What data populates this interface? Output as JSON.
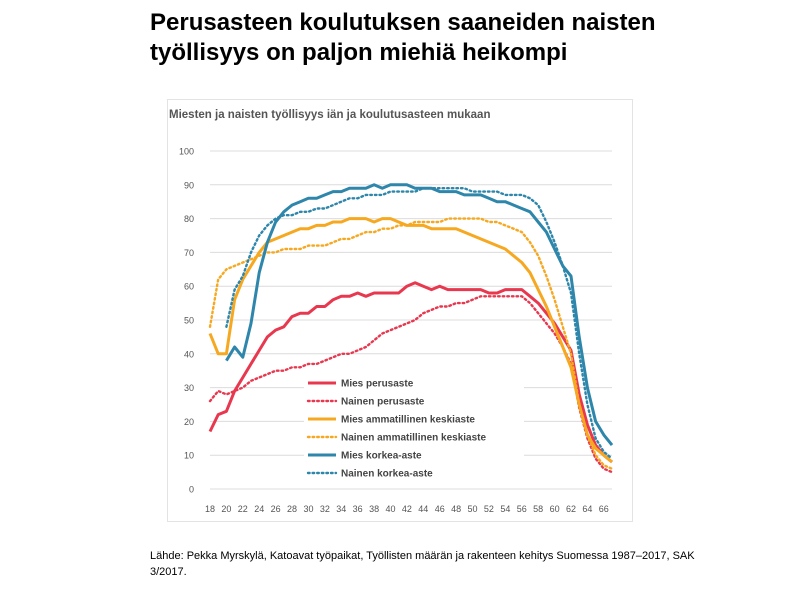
{
  "slide": {
    "title": "Perusasteen koulutuksen saaneiden naisten työllisyys on paljon miehiä heikompi",
    "source": "Lähde: Pekka Myrskylä, Katoavat työpaikat, Työllisten määrän ja rakenteen kehitys Suomessa 1987–2017, SAK 3/2017."
  },
  "chart_data": {
    "type": "line",
    "title": "Miesten ja naisten työllisyys iän ja koulutusasteen mukaan",
    "xlabel": "",
    "ylabel": "",
    "xlim": [
      18,
      67
    ],
    "ylim": [
      0,
      100
    ],
    "yticks": [
      0,
      10,
      20,
      30,
      40,
      50,
      60,
      70,
      80,
      90,
      100
    ],
    "xticks": [
      18,
      20,
      22,
      24,
      26,
      28,
      30,
      32,
      34,
      36,
      38,
      40,
      42,
      44,
      46,
      48,
      50,
      52,
      54,
      56,
      58,
      60,
      62,
      64,
      66
    ],
    "grid": "horizontal",
    "legend_position": "lower-center",
    "series": [
      {
        "name": "Mies perusaste",
        "color": "#e8384f",
        "style": "solid",
        "x": [
          18,
          19,
          20,
          21,
          22,
          23,
          24,
          25,
          26,
          27,
          28,
          29,
          30,
          31,
          32,
          33,
          34,
          35,
          36,
          37,
          38,
          39,
          40,
          41,
          42,
          43,
          44,
          45,
          46,
          47,
          48,
          49,
          50,
          51,
          52,
          53,
          54,
          55,
          56,
          57,
          58,
          59,
          60,
          61,
          62,
          63,
          64,
          65,
          66,
          67
        ],
        "y": [
          17,
          22,
          23,
          29,
          33,
          37,
          41,
          45,
          47,
          48,
          51,
          52,
          52,
          54,
          54,
          56,
          57,
          57,
          58,
          57,
          58,
          58,
          58,
          58,
          60,
          61,
          60,
          59,
          60,
          59,
          59,
          59,
          59,
          59,
          58,
          58,
          59,
          59,
          59,
          57,
          55,
          52,
          49,
          45,
          41,
          28,
          19,
          13,
          10,
          8
        ]
      },
      {
        "name": "Nainen perusaste",
        "color": "#e8384f",
        "style": "dotted",
        "x": [
          18,
          19,
          20,
          21,
          22,
          23,
          24,
          25,
          26,
          27,
          28,
          29,
          30,
          31,
          32,
          33,
          34,
          35,
          36,
          37,
          38,
          39,
          40,
          41,
          42,
          43,
          44,
          45,
          46,
          47,
          48,
          49,
          50,
          51,
          52,
          53,
          54,
          55,
          56,
          57,
          58,
          59,
          60,
          61,
          62,
          63,
          64,
          65,
          66,
          67
        ],
        "y": [
          26,
          29,
          28,
          29,
          30,
          32,
          33,
          34,
          35,
          35,
          36,
          36,
          37,
          37,
          38,
          39,
          40,
          40,
          41,
          42,
          44,
          46,
          47,
          48,
          49,
          50,
          52,
          53,
          54,
          54,
          55,
          55,
          56,
          57,
          57,
          57,
          57,
          57,
          57,
          55,
          52,
          49,
          46,
          42,
          37,
          24,
          15,
          9,
          6,
          5
        ]
      },
      {
        "name": "Mies ammatillinen keskiaste",
        "color": "#f6a821",
        "style": "solid",
        "x": [
          18,
          19,
          20,
          21,
          22,
          23,
          24,
          25,
          26,
          27,
          28,
          29,
          30,
          31,
          32,
          33,
          34,
          35,
          36,
          37,
          38,
          39,
          40,
          41,
          42,
          43,
          44,
          45,
          46,
          47,
          48,
          49,
          50,
          51,
          52,
          53,
          54,
          55,
          56,
          57,
          58,
          59,
          60,
          61,
          62,
          63,
          64,
          65,
          66,
          67
        ],
        "y": [
          46,
          40,
          40,
          56,
          62,
          66,
          70,
          73,
          74,
          75,
          76,
          77,
          77,
          78,
          78,
          79,
          79,
          80,
          80,
          80,
          79,
          80,
          80,
          79,
          78,
          78,
          78,
          77,
          77,
          77,
          77,
          76,
          75,
          74,
          73,
          72,
          71,
          69,
          67,
          64,
          59,
          54,
          48,
          42,
          36,
          25,
          16,
          12,
          10,
          8
        ]
      },
      {
        "name": "Nainen ammatillinen keskiaste",
        "color": "#f6a821",
        "style": "dotted",
        "x": [
          18,
          19,
          20,
          21,
          22,
          23,
          24,
          25,
          26,
          27,
          28,
          29,
          30,
          31,
          32,
          33,
          34,
          35,
          36,
          37,
          38,
          39,
          40,
          41,
          42,
          43,
          44,
          45,
          46,
          47,
          48,
          49,
          50,
          51,
          52,
          53,
          54,
          55,
          56,
          57,
          58,
          59,
          60,
          61,
          62,
          63,
          64,
          65,
          66,
          67
        ],
        "y": [
          48,
          62,
          65,
          66,
          67,
          68,
          69,
          70,
          70,
          71,
          71,
          71,
          72,
          72,
          72,
          73,
          74,
          74,
          75,
          76,
          76,
          77,
          77,
          78,
          78,
          79,
          79,
          79,
          79,
          80,
          80,
          80,
          80,
          80,
          79,
          79,
          78,
          77,
          76,
          73,
          69,
          63,
          56,
          48,
          40,
          25,
          16,
          10,
          7,
          6
        ]
      },
      {
        "name": "Mies korkea-aste",
        "color": "#2e86ab",
        "style": "solid",
        "x": [
          20,
          21,
          22,
          23,
          24,
          25,
          26,
          27,
          28,
          29,
          30,
          31,
          32,
          33,
          34,
          35,
          36,
          37,
          38,
          39,
          40,
          41,
          42,
          43,
          44,
          45,
          46,
          47,
          48,
          49,
          50,
          51,
          52,
          53,
          54,
          55,
          56,
          57,
          58,
          59,
          60,
          61,
          62,
          63,
          64,
          65,
          66,
          67
        ],
        "y": [
          38,
          42,
          39,
          49,
          64,
          73,
          79,
          82,
          84,
          85,
          86,
          86,
          87,
          88,
          88,
          89,
          89,
          89,
          90,
          89,
          90,
          90,
          90,
          89,
          89,
          89,
          88,
          88,
          88,
          87,
          87,
          87,
          86,
          85,
          85,
          84,
          83,
          82,
          79,
          76,
          71,
          66,
          63,
          45,
          30,
          20,
          16,
          13
        ]
      },
      {
        "name": "Nainen korkea-aste",
        "color": "#2e86ab",
        "style": "dotted",
        "x": [
          20,
          21,
          22,
          23,
          24,
          25,
          26,
          27,
          28,
          29,
          30,
          31,
          32,
          33,
          34,
          35,
          36,
          37,
          38,
          39,
          40,
          41,
          42,
          43,
          44,
          45,
          46,
          47,
          48,
          49,
          50,
          51,
          52,
          53,
          54,
          55,
          56,
          57,
          58,
          59,
          60,
          61,
          62,
          63,
          64,
          65,
          66,
          67
        ],
        "y": [
          48,
          59,
          63,
          70,
          75,
          78,
          80,
          81,
          81,
          82,
          82,
          83,
          83,
          84,
          85,
          86,
          86,
          87,
          87,
          87,
          88,
          88,
          88,
          88,
          89,
          89,
          89,
          89,
          89,
          89,
          88,
          88,
          88,
          88,
          87,
          87,
          87,
          86,
          84,
          79,
          73,
          66,
          58,
          40,
          25,
          15,
          11,
          9
        ]
      }
    ]
  }
}
